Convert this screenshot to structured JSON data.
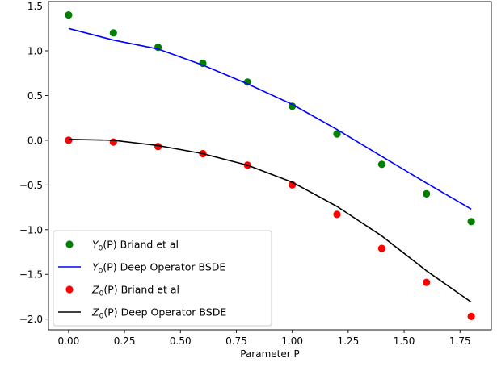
{
  "chart_data": {
    "type": "scatter+line",
    "title": "",
    "xlabel": "Parameter P",
    "ylabel": "",
    "xlim": [
      -0.09,
      1.89
    ],
    "ylim": [
      -2.12,
      1.55
    ],
    "grid": false,
    "legend_position": "lower-left",
    "xticks": [
      0.0,
      0.25,
      0.5,
      0.75,
      1.0,
      1.25,
      1.5,
      1.75
    ],
    "xtick_labels": [
      "0.00",
      "0.25",
      "0.50",
      "0.75",
      "1.00",
      "1.25",
      "1.50",
      "1.75"
    ],
    "yticks": [
      1.5,
      1.0,
      0.5,
      0.0,
      -0.5,
      -1.0,
      -1.5,
      -2.0
    ],
    "ytick_labels": [
      "1.5",
      "1.0",
      "0.5",
      "0.0",
      "−0.5",
      "−1.0",
      "−1.5",
      "−2.0"
    ],
    "series": [
      {
        "name": "Y0(P) Briand et al",
        "legend_main": "Y",
        "legend_sub": "0",
        "legend_rest": "(P) Briand et al",
        "kind": "scatter",
        "color": "#008000",
        "x": [
          0.0,
          0.2,
          0.4,
          0.6,
          0.8,
          1.0,
          1.2,
          1.4,
          1.6,
          1.8
        ],
        "y": [
          1.4,
          1.2,
          1.04,
          0.86,
          0.65,
          0.38,
          0.07,
          -0.27,
          -0.6,
          -0.91
        ]
      },
      {
        "name": "Y0(P) Deep Operator BSDE",
        "legend_main": "Y",
        "legend_sub": "0",
        "legend_rest": "(P) Deep Operator BSDE",
        "kind": "line",
        "color": "#0000ff",
        "x": [
          0.0,
          0.2,
          0.4,
          0.6,
          0.8,
          1.0,
          1.2,
          1.4,
          1.6,
          1.8
        ],
        "y": [
          1.25,
          1.12,
          1.02,
          0.84,
          0.63,
          0.4,
          0.12,
          -0.18,
          -0.48,
          -0.77
        ]
      },
      {
        "name": "Z0(P) Briand et al",
        "legend_main": "Z",
        "legend_sub": "0",
        "legend_rest": "(P) Briand et al",
        "kind": "scatter",
        "color": "#ff0000",
        "x": [
          0.0,
          0.2,
          0.4,
          0.6,
          0.8,
          1.0,
          1.2,
          1.4,
          1.6,
          1.8
        ],
        "y": [
          0.0,
          -0.02,
          -0.07,
          -0.15,
          -0.28,
          -0.5,
          -0.83,
          -1.21,
          -1.59,
          -1.97
        ]
      },
      {
        "name": "Z0(P) Deep Operator BSDE",
        "legend_main": "Z",
        "legend_sub": "0",
        "legend_rest": "(P) Deep Operator BSDE",
        "kind": "line",
        "color": "#000000",
        "x": [
          0.0,
          0.2,
          0.4,
          0.6,
          0.8,
          1.0,
          1.2,
          1.4,
          1.6,
          1.8
        ],
        "y": [
          0.01,
          0.0,
          -0.06,
          -0.15,
          -0.28,
          -0.47,
          -0.74,
          -1.07,
          -1.46,
          -1.81
        ]
      }
    ]
  }
}
